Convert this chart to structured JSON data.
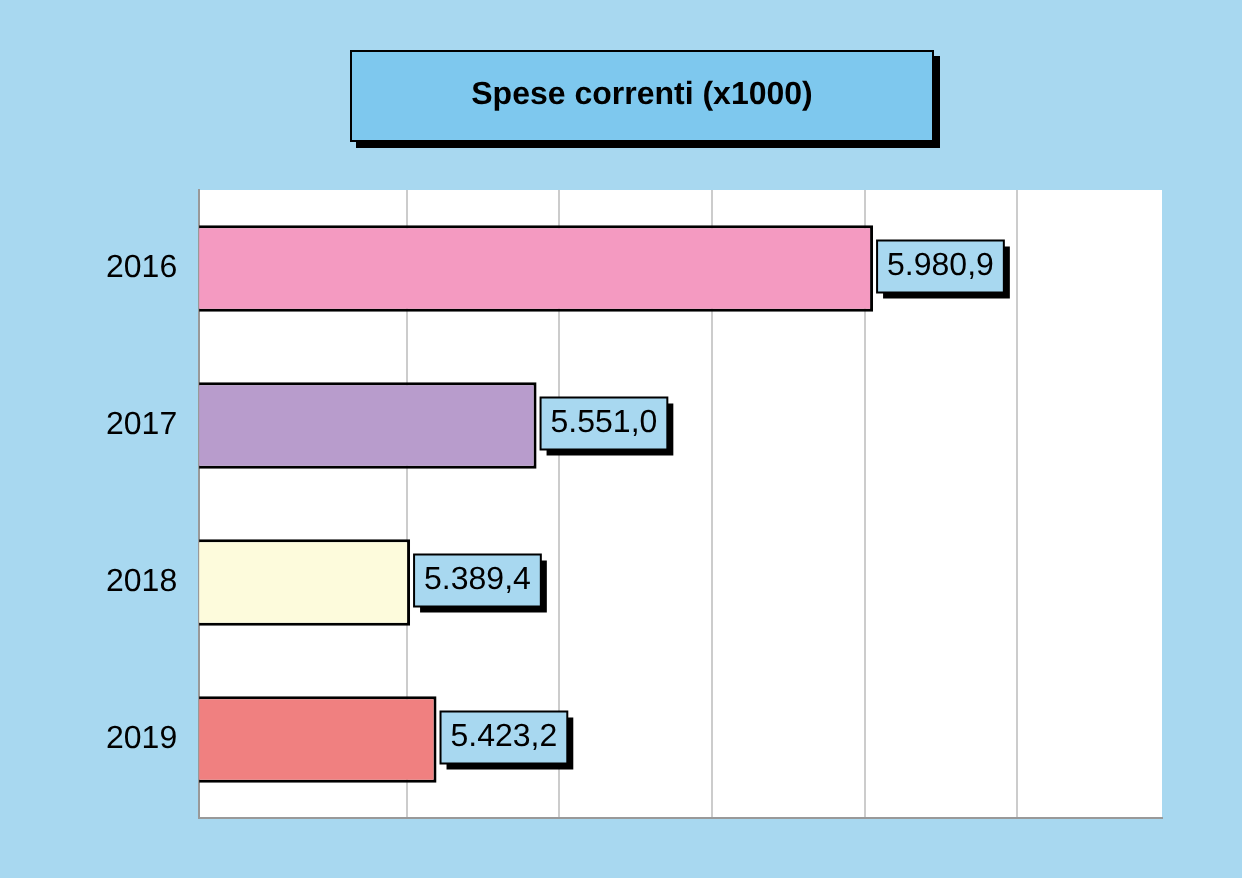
{
  "chart_data": {
    "type": "bar",
    "orientation": "horizontal",
    "title": "Spese correnti (x1000)",
    "categories": [
      "2016",
      "2017",
      "2018",
      "2019"
    ],
    "values": [
      5980.9,
      5551.0,
      5389.4,
      5423.2
    ],
    "value_labels": [
      "5.980,9",
      "5.551,0",
      "5.389,4",
      "5.423,2"
    ],
    "colors": [
      "#f49ac1",
      "#b89ccc",
      "#fdfbdc",
      "#f08080"
    ],
    "xlim": [
      5120,
      6350
    ],
    "xticks": [
      {
        "value": 5385,
        "label": null
      },
      {
        "value": 5580,
        "label": null
      },
      {
        "value": 5775,
        "label": null
      },
      {
        "value": 5970,
        "label": null
      },
      {
        "value": 6165,
        "label": null
      }
    ],
    "grid": "x",
    "tick_labels": "y",
    "legend": false
  }
}
